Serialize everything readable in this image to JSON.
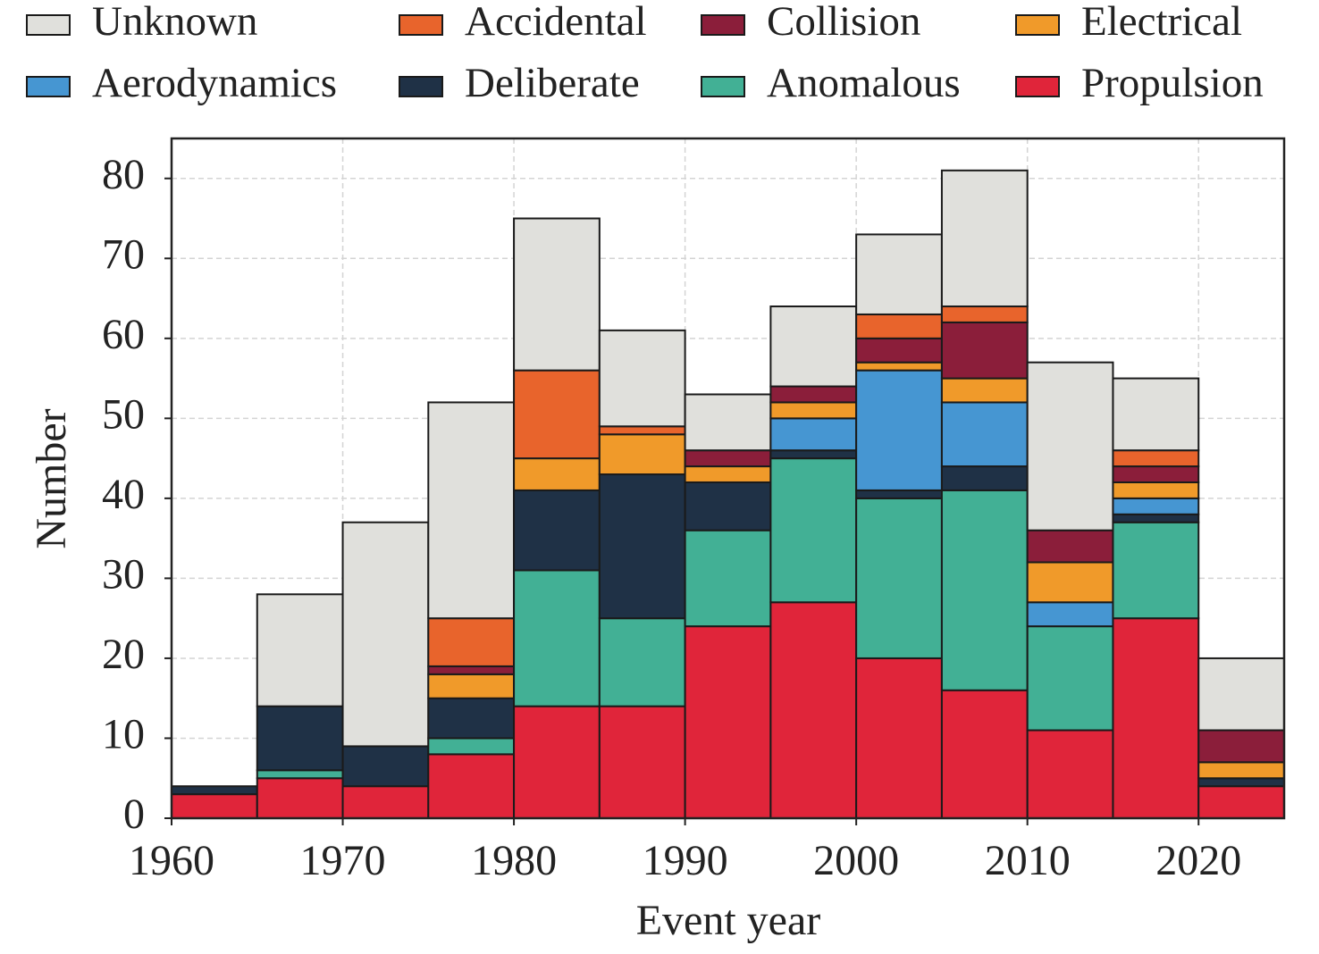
{
  "chart_data": {
    "type": "histogram",
    "stacked": true,
    "xlabel": "Event year",
    "ylabel": "Number",
    "bins": [
      1960,
      1965,
      1970,
      1975,
      1980,
      1985,
      1990,
      1995,
      2000,
      2005,
      2010,
      2015,
      2020,
      2025
    ],
    "series": [
      {
        "name": "Unknown",
        "color": "#e0e0dc",
        "values": [
          0,
          14,
          28,
          27,
          19,
          12,
          7,
          10,
          10,
          17,
          21,
          9,
          9
        ]
      },
      {
        "name": "Accidental",
        "color": "#e8642c",
        "values": [
          0,
          0,
          0,
          6,
          11,
          1,
          0,
          0,
          3,
          2,
          0,
          2,
          0
        ]
      },
      {
        "name": "Collision",
        "color": "#8b1e3a",
        "values": [
          0,
          0,
          0,
          1,
          0,
          0,
          2,
          2,
          3,
          7,
          4,
          2,
          4
        ]
      },
      {
        "name": "Electrical",
        "color": "#f09a2a",
        "values": [
          0,
          0,
          0,
          3,
          4,
          5,
          2,
          2,
          1,
          3,
          5,
          2,
          2
        ]
      },
      {
        "name": "Aerodynamics",
        "color": "#4696d2",
        "values": [
          0,
          0,
          0,
          0,
          0,
          0,
          0,
          4,
          15,
          8,
          3,
          2,
          0
        ]
      },
      {
        "name": "Deliberate",
        "color": "#1f3146",
        "values": [
          1,
          8,
          5,
          5,
          10,
          18,
          6,
          1,
          1,
          3,
          0,
          1,
          1
        ]
      },
      {
        "name": "Anomalous",
        "color": "#42b095",
        "values": [
          0,
          1,
          0,
          2,
          17,
          11,
          12,
          18,
          20,
          25,
          13,
          12,
          0
        ]
      },
      {
        "name": "Propulsion",
        "color": "#e0253a",
        "values": [
          3,
          5,
          4,
          8,
          14,
          14,
          24,
          27,
          20,
          16,
          11,
          25,
          4
        ]
      }
    ],
    "xlim": [
      1960,
      2025
    ],
    "ylim": [
      0,
      85
    ],
    "xticks": [
      1960,
      1970,
      1980,
      1990,
      2000,
      2010,
      2020
    ],
    "yticks": [
      0,
      10,
      20,
      30,
      40,
      50,
      60,
      70,
      80
    ],
    "grid": true,
    "legend": "top"
  }
}
